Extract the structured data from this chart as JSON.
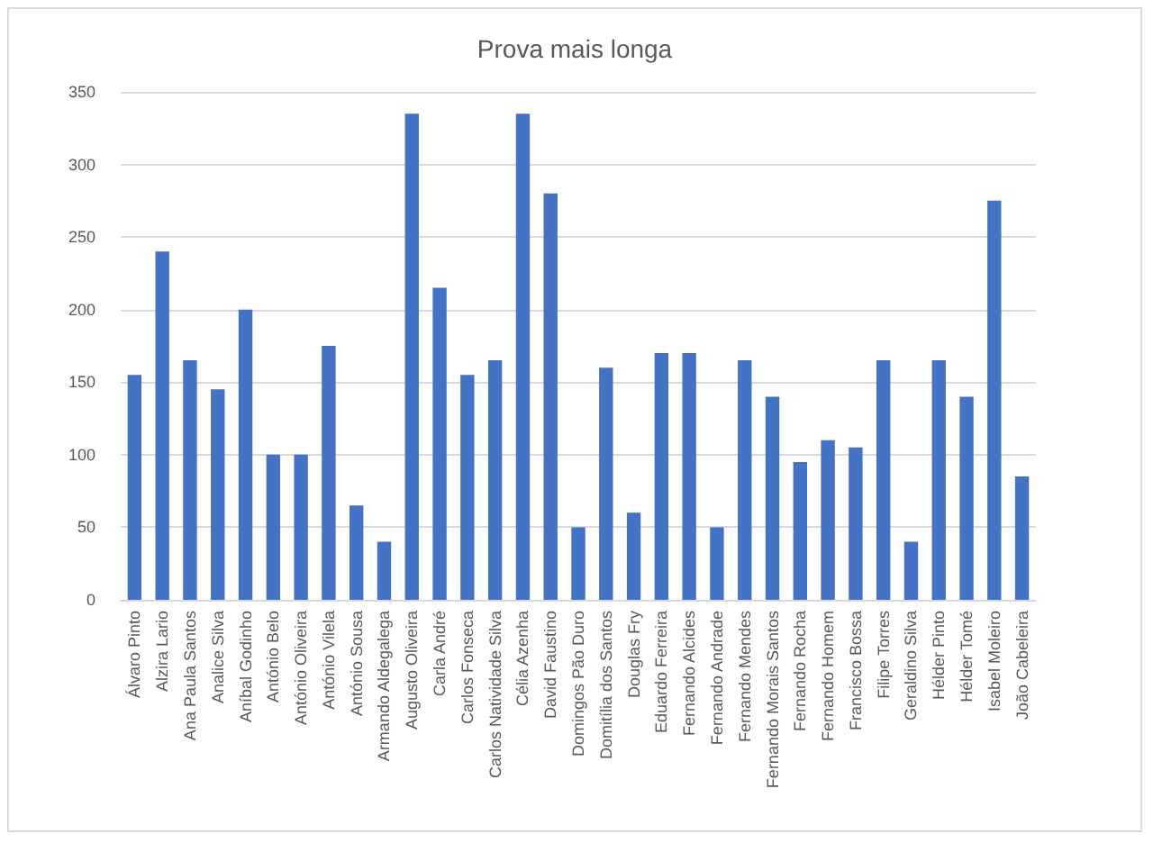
{
  "chart_data": {
    "type": "bar",
    "title": "Prova mais longa",
    "categories": [
      "Álvaro Pinto",
      "Alzira Lario",
      "Ana Paula Santos",
      "Analice Silva",
      "Aníbal Godinho",
      "António Belo",
      "António Oliveira",
      "António Vilela",
      "António Sousa",
      "Armando Aldegalega",
      "Augusto Oliveira",
      "Carla André",
      "Carlos Fonseca",
      "Carlos Natividade Silva",
      "Célia Azenha",
      "David Faustino",
      "Domingos Pão Duro",
      "Domitília dos Santos",
      "Douglas Fry",
      "Eduardo Ferreira",
      "Fernando Alcides",
      "Fernando Andrade",
      "Fernando Mendes",
      "Fernando Morais Santos",
      "Fernando Rocha",
      "Fernando Homem",
      "Francisco Bossa",
      "Filipe Torres",
      "Geraldino Silva",
      "Hélder Pinto",
      "Hélder Tomé",
      "Isabel Moleiro",
      "João Cabeleira"
    ],
    "values": [
      155,
      240,
      165,
      145,
      200,
      100,
      100,
      175,
      65,
      40,
      335,
      215,
      155,
      165,
      335,
      280,
      50,
      160,
      60,
      170,
      170,
      50,
      165,
      140,
      95,
      110,
      105,
      165,
      40,
      165,
      140,
      275,
      85
    ],
    "color": "#4472c4",
    "ylim": [
      0,
      350
    ],
    "yticks": [
      0,
      50,
      100,
      150,
      200,
      250,
      300,
      350
    ],
    "grid": "y"
  }
}
